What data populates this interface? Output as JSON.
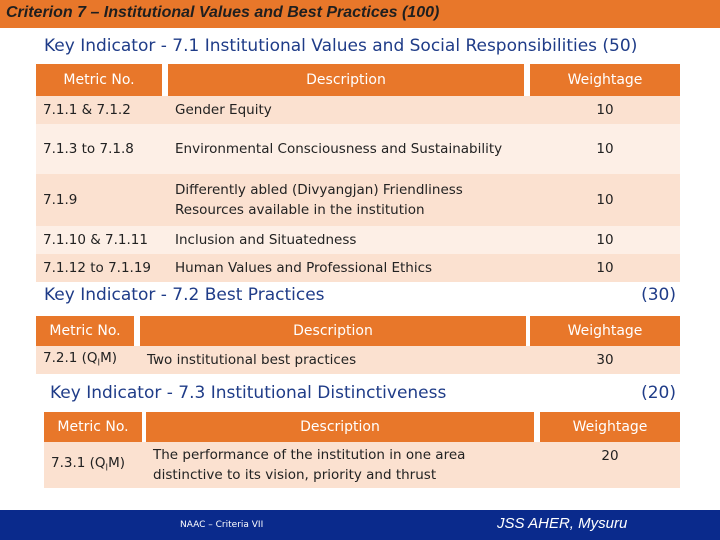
{
  "header": {
    "title": "Criterion 7 – Institutional Values and Best Practices (100)"
  },
  "section1": {
    "title": "Key Indicator - 7.1 Institutional Values and Social Responsibilities (50)",
    "columns": [
      "Metric No.",
      "Description",
      "Weightage"
    ],
    "rows": [
      [
        "7.1.1 & 7.1.2",
        "Gender Equity",
        "10"
      ],
      [
        "7.1.3 to 7.1.8",
        "Environmental Consciousness and Sustainability",
        "10"
      ],
      [
        "7.1.9",
        "Differently abled (Divyangjan) Friendliness Resources available in the institution",
        "10"
      ],
      [
        "7.1.10 & 7.1.11",
        "Inclusion and Situatedness",
        "10"
      ],
      [
        "7.1.12 to 7.1.19",
        "Human Values and Professional Ethics",
        "10"
      ]
    ]
  },
  "section2": {
    "title": "Key Indicator - 7.2 Best Practices",
    "weight": "(30)",
    "columns": [
      "Metric No.",
      "Description",
      "Weightage"
    ],
    "row": {
      "metric": [
        "7.2.1 (Q",
        "l",
        "M)"
      ],
      "description": "Two institutional best practices",
      "weightage": "30"
    }
  },
  "section3": {
    "title": "Key Indicator - 7.3 Institutional Distinctiveness",
    "weight": "(20)",
    "columns": [
      "Metric No.",
      "Description",
      "Weightage"
    ],
    "row": {
      "metric": [
        "7.3.1 (Q",
        "l",
        "M)"
      ],
      "description": "The performance of the institution in one area distinctive to its vision, priority and thrust",
      "weightage": "20"
    }
  },
  "footer": {
    "left": "NAAC – Criteria VII",
    "right": "JSS AHER, Mysuru"
  }
}
